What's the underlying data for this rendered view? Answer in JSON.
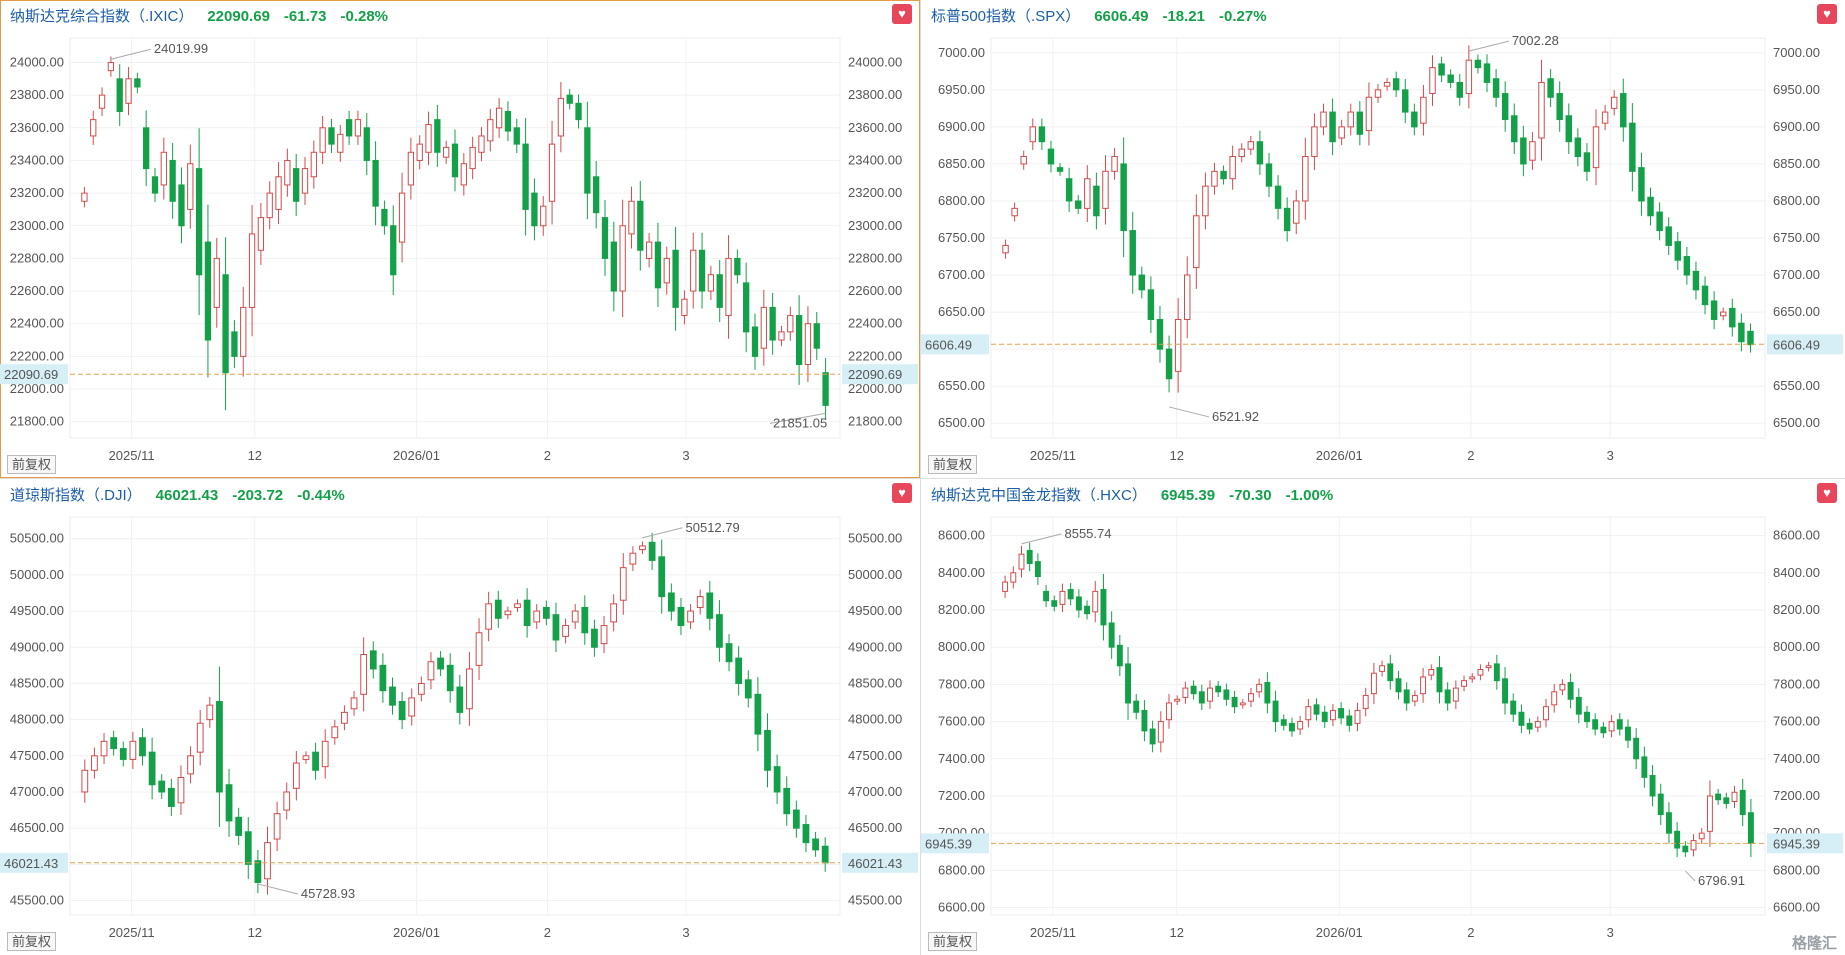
{
  "frequency_label": "前复权",
  "watermark": "格隆汇",
  "icons": {
    "favorite": "heart-icon"
  },
  "colors": {
    "up": "#d24b4b",
    "down": "#13a048",
    "refline": "#e3a24a",
    "label_bg": "#d6eef6"
  },
  "panels": [
    {
      "name": "纳斯达克综合指数（.IXIC）",
      "price": "22090.69",
      "change": "-61.73",
      "percent": "-0.28%",
      "current_label": "22090.69",
      "high_label": "24019.99",
      "low_label": "21851.05",
      "y_ticks": [
        "24000.00",
        "23800.00",
        "23600.00",
        "23400.00",
        "23200.00",
        "23000.00",
        "22800.00",
        "22600.00",
        "22400.00",
        "22200.00",
        "22000.00",
        "21800.00"
      ],
      "x_ticks": [
        "2025/11",
        "12",
        "2026/01",
        "2",
        "3"
      ],
      "frequency": "前复权"
    },
    {
      "name": "标普500指数（.SPX）",
      "price": "6606.49",
      "change": "-18.21",
      "percent": "-0.27%",
      "current_label": "6606.49",
      "high_label": "7002.28",
      "low_label": "6521.92",
      "y_ticks": [
        "7000.00",
        "6950.00",
        "6900.00",
        "6850.00",
        "6800.00",
        "6750.00",
        "6700.00",
        "6650.00",
        "6600.00",
        "6550.00",
        "6500.00"
      ],
      "x_ticks": [
        "2025/11",
        "12",
        "2026/01",
        "2",
        "3"
      ],
      "frequency": "前复权"
    },
    {
      "name": "道琼斯指数（.DJI）",
      "price": "46021.43",
      "change": "-203.72",
      "percent": "-0.44%",
      "current_label": "46021.43",
      "high_label": "50512.79",
      "low_label": "45728.93",
      "y_ticks": [
        "50500.00",
        "50000.00",
        "49500.00",
        "49000.00",
        "48500.00",
        "48000.00",
        "47500.00",
        "47000.00",
        "46500.00",
        "46000.00",
        "45500.00"
      ],
      "x_ticks": [
        "2025/11",
        "12",
        "2026/01",
        "2",
        "3"
      ],
      "frequency": "前复权"
    },
    {
      "name": "纳斯达克中国金龙指数（.HXC）",
      "price": "6945.39",
      "change": "-70.30",
      "percent": "-1.00%",
      "current_label": "6945.39",
      "high_label": "8555.74",
      "low_label": "6796.91",
      "y_ticks": [
        "8600.00",
        "8400.00",
        "8200.00",
        "8000.00",
        "7800.00",
        "7600.00",
        "7400.00",
        "7200.00",
        "7000.00",
        "6800.00",
        "6600.00"
      ],
      "x_ticks": [
        "2025/11",
        "12",
        "2026/01",
        "2",
        "3"
      ],
      "frequency": "前复权"
    }
  ],
  "chart_data": [
    {
      "type": "candlestick",
      "title": "纳斯达克综合指数（.IXIC）",
      "ylim": [
        21700,
        24150
      ],
      "current": 22090.69,
      "high": 24019.99,
      "low": 21851.05,
      "x_ticks": [
        "2025/11",
        "12",
        "2026/01",
        "2",
        "3"
      ],
      "series_close": [
        23200,
        23650,
        23800,
        24000,
        23700,
        23900,
        23850,
        23350,
        23200,
        23450,
        23150,
        23000,
        23380,
        22700,
        22300,
        22800,
        22100,
        22200,
        22500,
        22950,
        23050,
        23200,
        23300,
        23400,
        23150,
        23350,
        23450,
        23600,
        23500,
        23560,
        23550,
        23650,
        23400,
        23120,
        23000,
        22700,
        23200,
        23450,
        23500,
        23620,
        23450,
        23480,
        23300,
        23380,
        23480,
        23550,
        23650,
        23720,
        23580,
        23500,
        23100,
        23000,
        23120,
        23500,
        23780,
        23750,
        23650,
        23200,
        23080,
        22800,
        22600,
        23000,
        23150,
        22850,
        22900,
        22620,
        22800,
        22500,
        22550,
        22850,
        22600,
        22700,
        22500,
        22800,
        22700,
        22350,
        22200,
        22500,
        22300,
        22350,
        22450,
        22150,
        22400,
        22250,
        21900
      ],
      "series_open": [
        23150,
        23550,
        23720,
        23950,
        23900,
        23750,
        23900,
        23600,
        23300,
        23250,
        23400,
        23250,
        23100,
        23350,
        22900,
        22500,
        22700,
        22350,
        22200,
        22500,
        22850,
        23050,
        23100,
        23250,
        23350,
        23200,
        23300,
        23450,
        23600,
        23450,
        23650,
        23550,
        23600,
        23400,
        23100,
        23000,
        22900,
        23250,
        23400,
        23450,
        23650,
        23420,
        23500,
        23250,
        23350,
        23450,
        23520,
        23600,
        23700,
        23600,
        23500,
        23200,
        23000,
        23150,
        23550,
        23800,
        23750,
        23600,
        23300,
        23050,
        22900,
        22600,
        22950,
        23150,
        22800,
        22900,
        22650,
        22850,
        22450,
        22600,
        22850,
        22600,
        22700,
        22450,
        22800,
        22650,
        22380,
        22250,
        22500,
        22300,
        22350,
        22450,
        22150,
        22400,
        22100
      ],
      "n": 85
    },
    {
      "type": "candlestick",
      "title": "标普500指数（.SPX）",
      "ylim": [
        6480,
        7020
      ],
      "current": 6606.49,
      "high": 7002.28,
      "low": 6521.92,
      "x_ticks": [
        "2025/11",
        "12",
        "2026/01",
        "2",
        "3"
      ],
      "series_close": [
        6740,
        6790,
        6860,
        6900,
        6880,
        6850,
        6840,
        6800,
        6790,
        6830,
        6780,
        6840,
        6860,
        6760,
        6700,
        6680,
        6640,
        6600,
        6560,
        6640,
        6700,
        6780,
        6820,
        6840,
        6830,
        6860,
        6870,
        6880,
        6850,
        6820,
        6790,
        6760,
        6800,
        6860,
        6900,
        6920,
        6880,
        6900,
        6920,
        6890,
        6940,
        6950,
        6960,
        6950,
        6920,
        6900,
        6940,
        6980,
        6970,
        6960,
        6940,
        6990,
        6980,
        6960,
        6940,
        6910,
        6880,
        6850,
        6880,
        6960,
        6940,
        6910,
        6880,
        6860,
        6840,
        6900,
        6920,
        6940,
        6900,
        6840,
        6800,
        6780,
        6760,
        6740,
        6720,
        6700,
        6680,
        6660,
        6640,
        6650,
        6630,
        6610,
        6606
      ],
      "series_open": [
        6730,
        6780,
        6850,
        6880,
        6900,
        6870,
        6845,
        6830,
        6800,
        6790,
        6820,
        6790,
        6840,
        6850,
        6760,
        6700,
        6680,
        6640,
        6600,
        6570,
        6640,
        6710,
        6780,
        6820,
        6840,
        6830,
        6860,
        6870,
        6880,
        6850,
        6820,
        6790,
        6770,
        6800,
        6860,
        6900,
        6920,
        6885,
        6900,
        6920,
        6895,
        6940,
        6955,
        6965,
        6950,
        6920,
        6905,
        6945,
        6985,
        6970,
        6960,
        6945,
        6990,
        6985,
        6965,
        6945,
        6915,
        6885,
        6855,
        6885,
        6965,
        6945,
        6915,
        6885,
        6865,
        6845,
        6905,
        6925,
        6945,
        6905,
        6845,
        6805,
        6785,
        6765,
        6745,
        6725,
        6705,
        6685,
        6665,
        6645,
        6655,
        6635,
        6624
      ],
      "n": 83
    },
    {
      "type": "candlestick",
      "title": "道琼斯指数（.DJI）",
      "ylim": [
        45300,
        50800
      ],
      "current": 46021.43,
      "high": 50512.79,
      "low": 45728.93,
      "x_ticks": [
        "2025/11",
        "12",
        "2026/01",
        "2",
        "3"
      ],
      "series_close": [
        47300,
        47500,
        47700,
        47600,
        47450,
        47700,
        47500,
        47100,
        47000,
        46800,
        47200,
        47500,
        47950,
        48200,
        47000,
        46600,
        46400,
        46000,
        45750,
        46300,
        46700,
        47000,
        47400,
        47500,
        47300,
        47700,
        47900,
        48100,
        48300,
        48900,
        48700,
        48400,
        48200,
        48000,
        48300,
        48500,
        48800,
        48700,
        48400,
        48100,
        48700,
        49200,
        49600,
        49400,
        49500,
        49600,
        49300,
        49500,
        49400,
        49100,
        49300,
        49500,
        49200,
        49000,
        49300,
        49600,
        50100,
        50300,
        50400,
        50200,
        49700,
        49500,
        49300,
        49500,
        49700,
        49400,
        49000,
        48800,
        48500,
        48300,
        47800,
        47300,
        47000,
        46700,
        46500,
        46300,
        46200,
        46021
      ],
      "series_open": [
        47000,
        47300,
        47500,
        47750,
        47600,
        47450,
        47750,
        47550,
        47150,
        47050,
        46850,
        47250,
        47550,
        48000,
        48250,
        47100,
        46650,
        46450,
        46050,
        45800,
        46350,
        46750,
        47050,
        47450,
        47550,
        47350,
        47750,
        47950,
        48150,
        48350,
        48950,
        48750,
        48450,
        48250,
        48050,
        48350,
        48550,
        48850,
        48750,
        48450,
        48150,
        48750,
        49250,
        49650,
        49450,
        49550,
        49650,
        49350,
        49550,
        49450,
        49150,
        49350,
        49550,
        49250,
        49050,
        49350,
        49650,
        50150,
        50350,
        50450,
        50250,
        49750,
        49550,
        49350,
        49550,
        49750,
        49450,
        49050,
        48850,
        48550,
        48350,
        47850,
        47350,
        47050,
        46750,
        46550,
        46350,
        46250
      ],
      "n": 78
    },
    {
      "type": "candlestick",
      "title": "纳斯达克中国金龙指数（.HXC）",
      "ylim": [
        6560,
        8700
      ],
      "current": 6945.39,
      "high": 8555.74,
      "low": 6796.91,
      "x_ticks": [
        "2025/11",
        "12",
        "2026/01",
        "2",
        "3"
      ],
      "series_close": [
        8350,
        8400,
        8500,
        8450,
        8380,
        8250,
        8220,
        8300,
        8260,
        8200,
        8180,
        8300,
        8120,
        8000,
        7900,
        7700,
        7650,
        7550,
        7480,
        7600,
        7700,
        7720,
        7780,
        7750,
        7700,
        7780,
        7760,
        7720,
        7680,
        7700,
        7750,
        7800,
        7700,
        7600,
        7580,
        7550,
        7600,
        7680,
        7640,
        7600,
        7660,
        7620,
        7580,
        7660,
        7740,
        7860,
        7900,
        7820,
        7760,
        7700,
        7740,
        7840,
        7880,
        7760,
        7700,
        7780,
        7820,
        7840,
        7880,
        7900,
        7820,
        7700,
        7640,
        7580,
        7560,
        7600,
        7680,
        7760,
        7800,
        7720,
        7640,
        7600,
        7560,
        7540,
        7600,
        7560,
        7500,
        7400,
        7300,
        7200,
        7100,
        7000,
        6920,
        6900,
        6960,
        7000,
        7200,
        7180,
        7160,
        7220,
        7100,
        6946
      ],
      "series_open": [
        8300,
        8350,
        8420,
        8520,
        8460,
        8300,
        8250,
        8230,
        8310,
        8270,
        8220,
        8190,
        8310,
        8130,
        8010,
        7910,
        7710,
        7660,
        7560,
        7490,
        7610,
        7710,
        7730,
        7790,
        7760,
        7710,
        7790,
        7770,
        7730,
        7690,
        7710,
        7760,
        7810,
        7710,
        7610,
        7590,
        7560,
        7610,
        7690,
        7650,
        7610,
        7670,
        7630,
        7590,
        7670,
        7750,
        7870,
        7910,
        7830,
        7770,
        7710,
        7750,
        7850,
        7890,
        7770,
        7710,
        7790,
        7830,
        7850,
        7890,
        7910,
        7830,
        7710,
        7650,
        7590,
        7570,
        7610,
        7690,
        7770,
        7810,
        7730,
        7650,
        7610,
        7570,
        7550,
        7610,
        7570,
        7510,
        7410,
        7310,
        7210,
        7110,
        7010,
        6930,
        6910,
        6970,
        7010,
        7210,
        7190,
        7170,
        7230,
        7110
      ],
      "n": 92
    }
  ]
}
